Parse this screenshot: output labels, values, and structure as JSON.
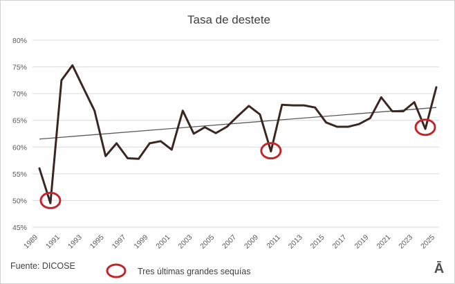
{
  "chart_data": {
    "type": "line",
    "title": "Tasa de destete",
    "xlabel": "",
    "ylabel": "",
    "ylim": [
      0.45,
      0.8
    ],
    "yticks": [
      "45%",
      "50%",
      "55%",
      "60%",
      "65%",
      "70%",
      "75%",
      "80%"
    ],
    "ytick_values": [
      0.45,
      0.5,
      0.55,
      0.6,
      0.65,
      0.7,
      0.75,
      0.8
    ],
    "xlim": [
      1989,
      2025
    ],
    "xticks": [
      "1989",
      "1991",
      "1993",
      "1995",
      "1997",
      "1999",
      "2001",
      "2003",
      "2005",
      "2007",
      "2009",
      "2011",
      "2013",
      "2015",
      "2017",
      "2019",
      "2021",
      "2023",
      "2025"
    ],
    "xtick_values": [
      1989,
      1991,
      1993,
      1995,
      1997,
      1999,
      2001,
      2003,
      2005,
      2007,
      2009,
      2011,
      2013,
      2015,
      2017,
      2019,
      2021,
      2023,
      2025
    ],
    "grid": true,
    "series": [
      {
        "x": [
          1989,
          1990,
          1991,
          1992,
          1993,
          1994,
          1995,
          1996,
          1997,
          1998,
          1999,
          2000,
          2001,
          2002,
          2003,
          2004,
          2005,
          2006,
          2007,
          2008,
          2009,
          2010,
          2011,
          2012,
          2013,
          2014,
          2015,
          2016,
          2017,
          2018,
          2019,
          2020,
          2021,
          2022,
          2023,
          2024,
          2025
        ],
        "values": [
          0.56,
          0.495,
          0.725,
          0.753,
          0.71,
          0.668,
          0.583,
          0.607,
          0.579,
          0.578,
          0.607,
          0.611,
          0.595,
          0.668,
          0.625,
          0.637,
          0.626,
          0.638,
          0.658,
          0.677,
          0.661,
          0.592,
          0.679,
          0.678,
          0.678,
          0.674,
          0.646,
          0.638,
          0.638,
          0.643,
          0.654,
          0.693,
          0.667,
          0.667,
          0.684,
          0.634,
          0.712
        ],
        "color": "#3b2620"
      }
    ],
    "trendline": {
      "x": [
        1989,
        2025
      ],
      "values": [
        0.615,
        0.674
      ],
      "color": "#595959"
    },
    "highlights": {
      "x": [
        1990,
        2010,
        2024
      ],
      "values": [
        0.5,
        0.593,
        0.637
      ],
      "color": "#c0272d"
    },
    "legend": {
      "label": "Tres últimas grandes sequías",
      "position": "bottom"
    },
    "source": "Fuente: DICOSE",
    "logo": "Ā"
  }
}
